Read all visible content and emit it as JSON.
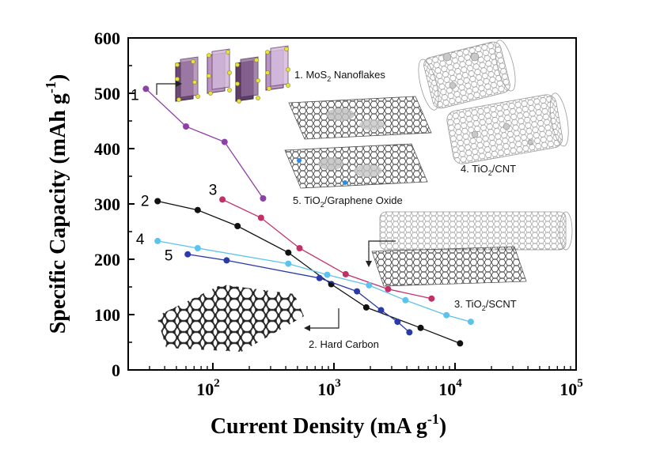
{
  "chart_data": {
    "type": "line",
    "x_scale": "log",
    "xlim": [
      20,
      100000
    ],
    "ylim": [
      0,
      600
    ],
    "xlabel": "Current Density (mA g",
    "xlabel_sup": "-1",
    "xlabel_end": ")",
    "ylabel": "Specific Capacity (mAh g",
    "ylabel_sup": "-1",
    "ylabel_end": ")",
    "y_ticks": [
      "0",
      "100",
      "200",
      "300",
      "400",
      "500",
      "600"
    ],
    "x_ticks": [
      {
        "value": 100,
        "base": "10",
        "exp": "2"
      },
      {
        "value": 1000,
        "base": "10",
        "exp": "3"
      },
      {
        "value": 10000,
        "base": "10",
        "exp": "4"
      },
      {
        "value": 100000,
        "base": "10",
        "exp": "5"
      }
    ],
    "series": [
      {
        "label": "1",
        "color": "#8e3fa8",
        "x": [
          28,
          60,
          125,
          260
        ],
        "y": [
          508,
          440,
          412,
          310
        ]
      },
      {
        "label": "2",
        "color": "#111111",
        "x": [
          35,
          75,
          160,
          420,
          950,
          1850,
          5200,
          11000
        ],
        "y": [
          305,
          289,
          260,
          212,
          155,
          113,
          76,
          48
        ]
      },
      {
        "label": "3",
        "color": "#c2306a",
        "x": [
          120,
          250,
          520,
          1250,
          2800,
          6400
        ],
        "y": [
          308,
          275,
          220,
          173,
          146,
          129
        ]
      },
      {
        "label": "4",
        "color": "#5bc3ec",
        "x": [
          35,
          75,
          420,
          880,
          1950,
          3900,
          8500,
          13500
        ],
        "y": [
          233,
          220,
          192,
          172,
          153,
          126,
          99,
          87
        ]
      },
      {
        "label": "5",
        "color": "#2b3aa6",
        "x": [
          62,
          130,
          760,
          1550,
          2450,
          3350,
          4200
        ],
        "y": [
          209,
          198,
          166,
          142,
          108,
          87,
          68
        ]
      }
    ],
    "annotations": [
      {
        "prefix": "1. MoS",
        "sub": "2",
        "suffix": " Nanoflakes"
      },
      {
        "prefix": "5. TiO",
        "sub": "2",
        "suffix": "/Graphene Oxide"
      },
      {
        "prefix": "4. TiO",
        "sub": "2",
        "suffix": "/CNT"
      },
      {
        "prefix": "3. TiO",
        "sub": "2",
        "suffix": "/SCNT"
      },
      {
        "prefix": "2. Hard Carbon",
        "sub": "",
        "suffix": ""
      }
    ]
  }
}
